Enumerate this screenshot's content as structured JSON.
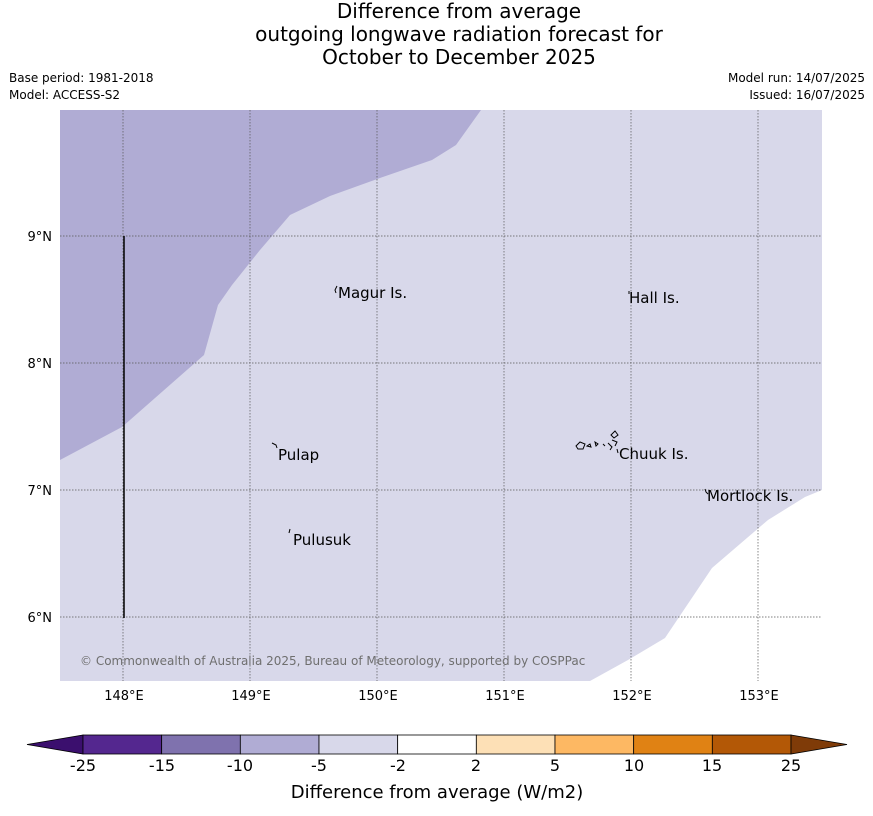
{
  "title": {
    "line1": "Difference from average",
    "line2": "outgoing longwave radiation forecast for",
    "line3": "October to December 2025"
  },
  "info": {
    "base_period": "Base period: 1981-2018",
    "model": "Model: ACCESS-S2",
    "model_run": "Model run: 14/07/2025",
    "issued": "Issued: 16/07/2025"
  },
  "map": {
    "lon_range": [
      147.5,
      153.5
    ],
    "lat_range": [
      5.5,
      10.0
    ],
    "lon_ticks": [
      "148°E",
      "149°E",
      "150°E",
      "151°E",
      "152°E",
      "153°E"
    ],
    "lat_ticks": [
      "9°N",
      "8°N",
      "7°N",
      "6°N"
    ],
    "places": [
      {
        "name": "Magur Is."
      },
      {
        "name": "Hall Is."
      },
      {
        "name": "Pulap"
      },
      {
        "name": "Chuuk Is."
      },
      {
        "name": "Mortlock Is."
      },
      {
        "name": "Pulusuk"
      }
    ],
    "copyright": "© Commonwealth of Australia 2025, Bureau of Meteorology, supported by COSPPac",
    "colors": {
      "class_minus_10_to_minus_5": "#b0acd4",
      "class_minus_5_to_minus_2": "#d8d8ea",
      "class_minus_2_to_2": "#ffffff",
      "grid": "#555555"
    }
  },
  "colorbar": {
    "labels": [
      "-25",
      "-15",
      "-10",
      "-5",
      "-2",
      "2",
      "5",
      "10",
      "15",
      "25"
    ],
    "colors": [
      "#3b0f6e",
      "#54278f",
      "#7f72ae",
      "#b0acd4",
      "#d8d8ea",
      "#ffffff",
      "#fde0b6",
      "#fdb863",
      "#e08214",
      "#b35806",
      "#7f3b08"
    ],
    "title": "Difference from average (W/m2)"
  }
}
